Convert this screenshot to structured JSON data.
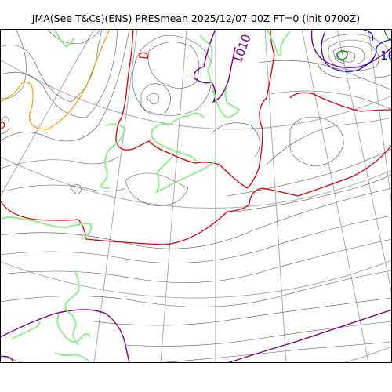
{
  "title": "JMA(See T&Cs)(ENS) PRESmean 2025/12/07 00Z FT=0 (init 0700Z)",
  "contour_labels": [
    {
      "text": "1010",
      "color": "#800080"
    },
    {
      "text": "10",
      "color": "#0000ff"
    }
  ],
  "colors": {
    "thin_isobar": "#555555",
    "graticule": "#aaaaaa",
    "red_isobar": "#e00000",
    "purple_isobar": "#800080",
    "orange_isobar": "#f5a000",
    "blue_isobar": "#0000ff",
    "green_isobar": "#008000",
    "coastline": "#90ee90"
  }
}
